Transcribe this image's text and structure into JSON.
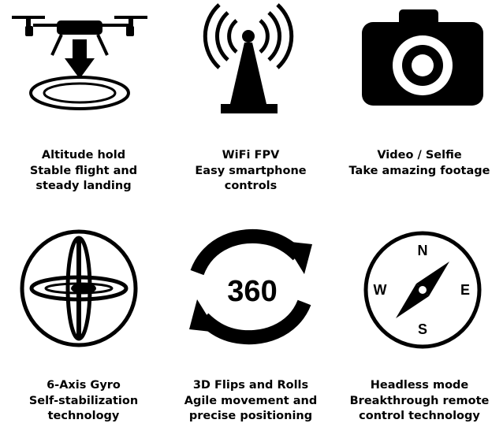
{
  "features": [
    {
      "icon": "drone-landing-icon",
      "title": "Altitude hold",
      "lines": [
        "Stable flight and",
        "steady landing"
      ]
    },
    {
      "icon": "wifi-antenna-icon",
      "title": "WiFi FPV",
      "lines": [
        "Easy smartphone",
        "controls"
      ]
    },
    {
      "icon": "camera-icon",
      "title": "Video / Selfie",
      "lines": [
        "Take amazing footage"
      ]
    },
    {
      "icon": "gyro-icon",
      "title": "6-Axis Gyro",
      "lines": [
        "Self-stabilization",
        "technology"
      ]
    },
    {
      "icon": "rotate-360-icon",
      "title": "3D Flips and Rolls",
      "lines": [
        "Agile movement and",
        "precise positioning"
      ],
      "icon_text": "360"
    },
    {
      "icon": "compass-icon",
      "title": "Headless mode",
      "lines": [
        "Breakthrough remote",
        "control technology"
      ],
      "compass": {
        "n": "N",
        "s": "S",
        "e": "E",
        "w": "W"
      }
    }
  ]
}
